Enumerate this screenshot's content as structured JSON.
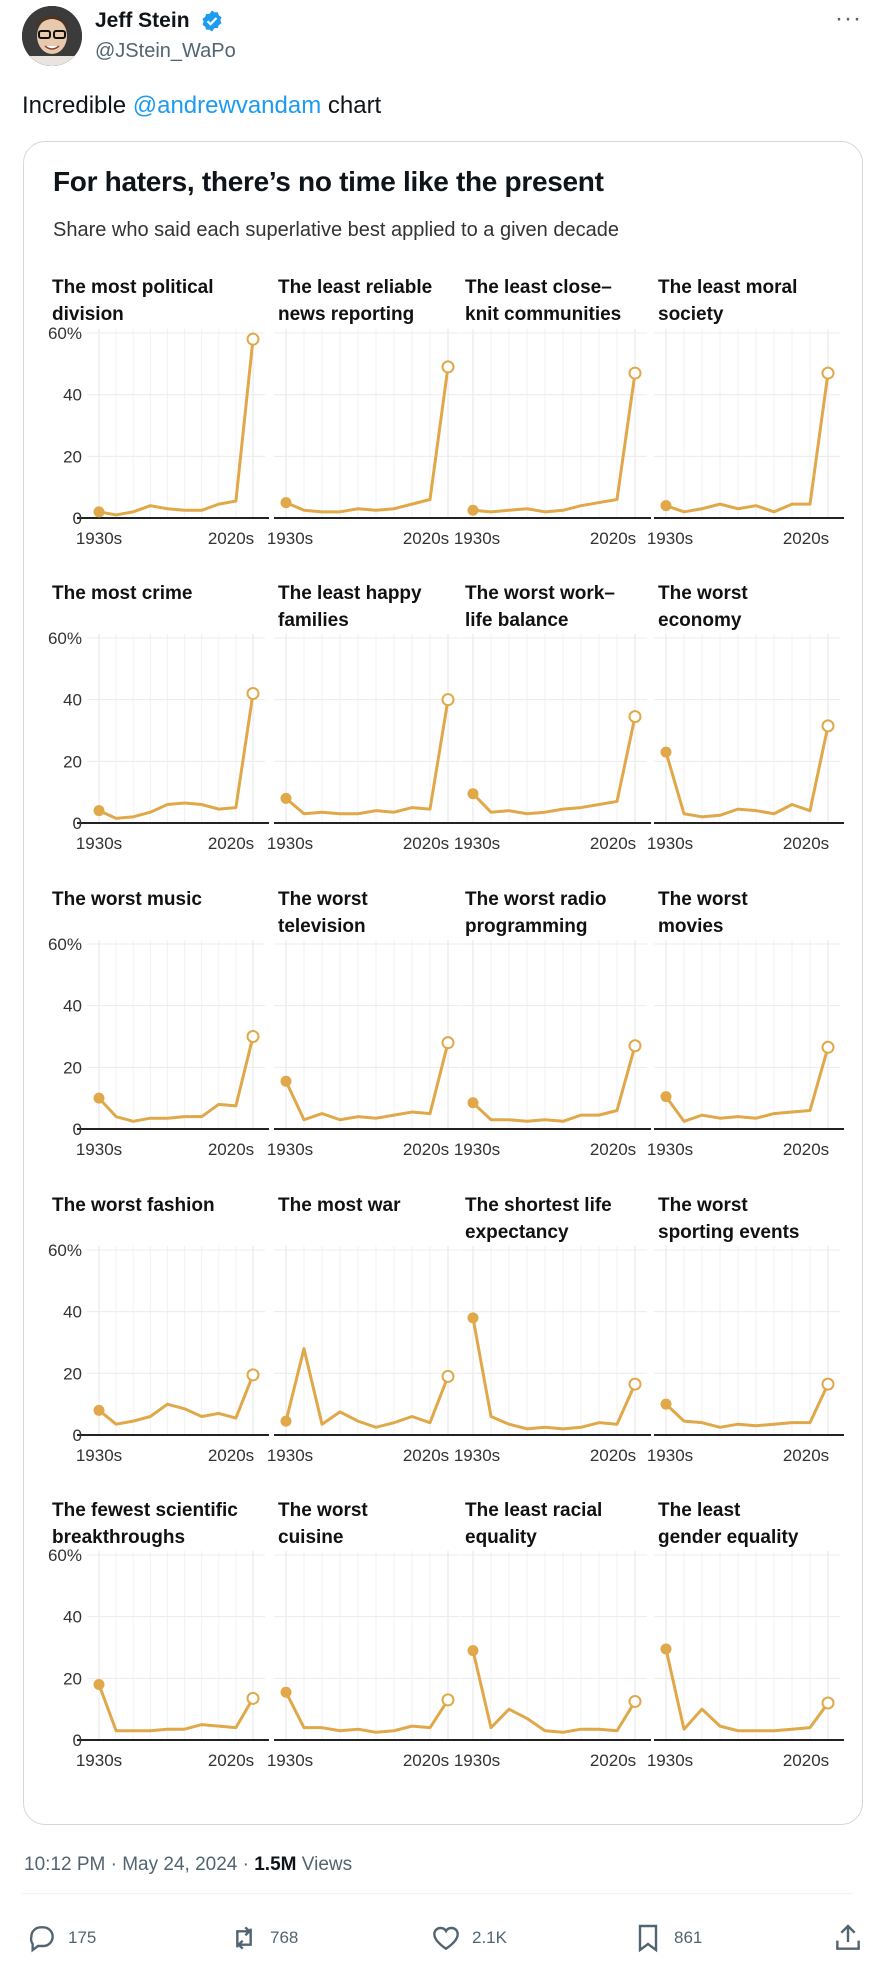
{
  "tweet": {
    "author_name": "Jeff Stein",
    "handle": "@JStein_WaPo",
    "text_before": "Incredible ",
    "mention": "@andrewvandam",
    "text_after": " chart",
    "timestamp": "10:12 PM · May 24, 2024 · ",
    "views_count": "1.5M",
    "views_label": " Views",
    "replies": "175",
    "retweets": "768",
    "likes": "2.1K",
    "bookmarks": "861"
  },
  "colors": {
    "accent": "#e0a849",
    "link": "#1d9bf0",
    "verified": "#1d9bf0"
  },
  "chart_data": {
    "type": "line",
    "title": "For haters, there’s no time like the present",
    "subtitle": "Share who said each superlative best applied to a given decade",
    "x_start_label": "1930s",
    "x_end_label": "2020s",
    "y_ticks": [
      "60%",
      "40",
      "20",
      "0"
    ],
    "ylim": [
      0,
      60
    ],
    "x": [
      "1930s",
      "1940s",
      "1950s",
      "1960s",
      "1970s",
      "1980s",
      "1990s",
      "2000s",
      "2010s",
      "2020s"
    ],
    "panels": [
      {
        "title_lines": [
          "The most political",
          "division"
        ],
        "values": [
          2,
          1,
          2,
          4,
          3,
          2.5,
          2.5,
          4.5,
          5.5,
          58
        ]
      },
      {
        "title_lines": [
          "The least reliable",
          "news reporting"
        ],
        "values": [
          5,
          2.5,
          2,
          2,
          3,
          2.5,
          3,
          4.5,
          6,
          49
        ]
      },
      {
        "title_lines": [
          "The least close–",
          "knit communities"
        ],
        "values": [
          2.5,
          2,
          2.5,
          3,
          2,
          2.5,
          4,
          5,
          6,
          47
        ]
      },
      {
        "title_lines": [
          "The least moral",
          "society"
        ],
        "values": [
          4,
          2,
          3,
          4.5,
          3,
          4,
          2,
          4.5,
          4.5,
          47
        ]
      },
      {
        "title_lines": [
          "The most crime"
        ],
        "values": [
          4,
          1.5,
          2,
          3.5,
          6,
          6.5,
          6,
          4.5,
          5,
          42
        ]
      },
      {
        "title_lines": [
          "The least happy",
          "families"
        ],
        "values": [
          8,
          3,
          3.5,
          3,
          3,
          4,
          3.5,
          5,
          4.5,
          40
        ]
      },
      {
        "title_lines": [
          "The worst work–",
          "life balance"
        ],
        "values": [
          9.5,
          3.5,
          4,
          3,
          3.5,
          4.5,
          5,
          6,
          7,
          34.5
        ]
      },
      {
        "title_lines": [
          "The worst",
          "economy"
        ],
        "values": [
          23,
          3,
          2,
          2.5,
          4.5,
          4,
          3,
          6,
          4,
          31.5
        ]
      },
      {
        "title_lines": [
          "The worst music"
        ],
        "values": [
          10,
          4,
          2.5,
          3.5,
          3.5,
          4,
          4,
          8,
          7.5,
          30
        ]
      },
      {
        "title_lines": [
          "The worst",
          "television"
        ],
        "values": [
          15.5,
          3,
          5,
          3,
          4,
          3.5,
          4.5,
          5.5,
          5,
          28
        ]
      },
      {
        "title_lines": [
          "The worst radio",
          "programming"
        ],
        "values": [
          8.5,
          3,
          3,
          2.5,
          3,
          2.5,
          4.5,
          4.5,
          6,
          27
        ]
      },
      {
        "title_lines": [
          "The worst",
          "movies"
        ],
        "values": [
          10.5,
          2.5,
          4.5,
          3.5,
          4,
          3.5,
          5,
          5.5,
          6,
          26.5
        ]
      },
      {
        "title_lines": [
          "The worst fashion"
        ],
        "values": [
          8,
          3.5,
          4.5,
          6,
          10,
          8.5,
          6,
          7,
          5.5,
          19.5
        ]
      },
      {
        "title_lines": [
          "The most war"
        ],
        "values": [
          4.5,
          28,
          3.5,
          7.5,
          4.5,
          2.5,
          4,
          6,
          4,
          19
        ]
      },
      {
        "title_lines": [
          "The shortest life",
          "expectancy"
        ],
        "values": [
          38,
          6,
          3.5,
          2,
          2.5,
          2,
          2.5,
          4,
          3.5,
          16.5
        ]
      },
      {
        "title_lines": [
          "The worst",
          "sporting events"
        ],
        "values": [
          10,
          4.5,
          4,
          2.5,
          3.5,
          3,
          3.5,
          4,
          4,
          16.5
        ]
      },
      {
        "title_lines": [
          "The fewest scientific",
          "breakthroughs"
        ],
        "values": [
          18,
          3,
          3,
          3,
          3.5,
          3.5,
          5,
          4.5,
          4,
          13.5
        ]
      },
      {
        "title_lines": [
          "The worst",
          "cuisine"
        ],
        "values": [
          15.5,
          4,
          4,
          3,
          3.5,
          2.5,
          3,
          4.5,
          4,
          13
        ]
      },
      {
        "title_lines": [
          "The least racial",
          "equality"
        ],
        "values": [
          29,
          4,
          10,
          7,
          3,
          2.5,
          3.5,
          3.5,
          3,
          12.5
        ]
      },
      {
        "title_lines": [
          "The least",
          "gender equality"
        ],
        "values": [
          29.5,
          3.5,
          10,
          4.5,
          3,
          3,
          3,
          3.5,
          4,
          12
        ]
      }
    ]
  }
}
